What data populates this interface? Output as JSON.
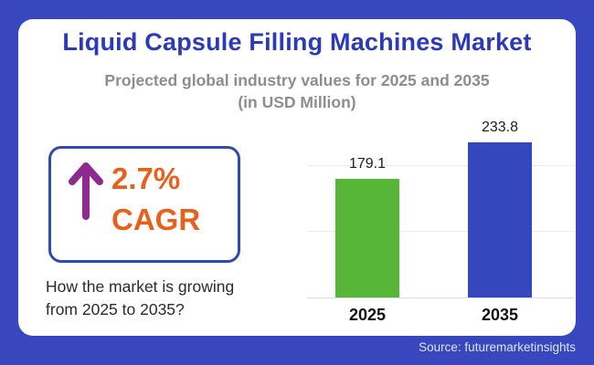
{
  "frame": {
    "background_color": "#3847BE",
    "source_label": "Source: futuremarketinsights"
  },
  "header": {
    "title": "Liquid Capsule Filling Machines Market",
    "title_color": "#2B3AB8",
    "subtitle_line1": "Projected global industry values for 2025 and 2035",
    "subtitle_line2": "(in USD Million)"
  },
  "cagr": {
    "value": "2.7%",
    "label": "CAGR",
    "text_color": "#E8611C",
    "arrow_color": "#8E2A8E",
    "box_border_color": "#2F4BAD"
  },
  "question": {
    "line1": "How the market is growing",
    "line2": "from 2025 to 2035?"
  },
  "chart_data": {
    "type": "bar",
    "title": "Liquid Capsule Filling Machines Market",
    "subtitle": "Projected global industry values for 2025 and 2035 (in USD Million)",
    "categories": [
      "2025",
      "2035"
    ],
    "values": [
      179.1,
      233.8
    ],
    "data_labels": [
      "179.1",
      "233.8"
    ],
    "bar_colors": [
      "#57B637",
      "#3547BD"
    ],
    "xlabel": "",
    "ylabel": "USD Million",
    "ylim": [
      0,
      250
    ],
    "gridline_values": [
      100,
      200
    ],
    "grid": true,
    "legend": false
  }
}
